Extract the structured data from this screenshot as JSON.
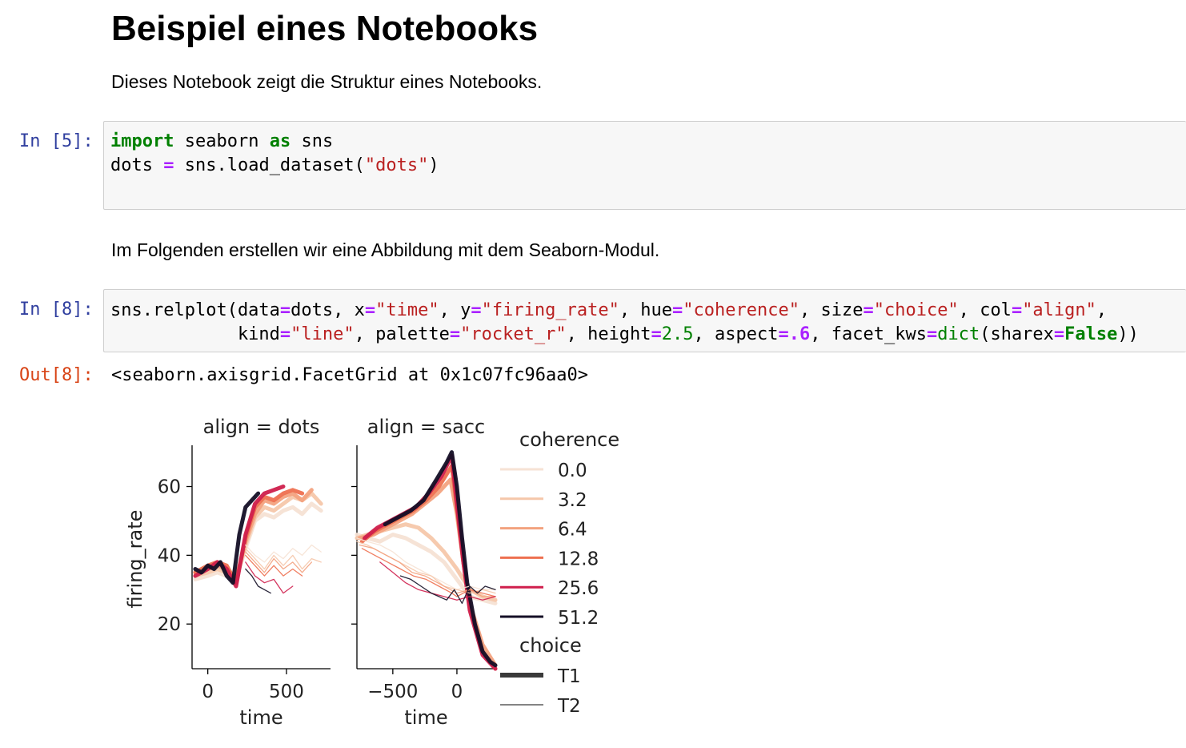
{
  "heading": "Beispiel eines Notebooks",
  "intro": "Dieses Notebook zeigt die Struktur eines Notebooks.",
  "cell1": {
    "prompt": "In [5]:",
    "line1": {
      "kw1": "import",
      "mod": " seaborn ",
      "kw2": "as",
      "alias": " sns"
    },
    "line2": {
      "a": "dots ",
      "op": "=",
      "b": " sns.load_dataset(",
      "s": "\"dots\"",
      "c": ")"
    }
  },
  "para2": "Im Folgenden erstellen wir eine Abbildung mit dem Seaborn-Modul.",
  "cell2": {
    "prompt": "In [8]:",
    "line1": [
      {
        "t": "sns.relplot(data",
        "c": ""
      },
      {
        "t": "=",
        "c": "op"
      },
      {
        "t": "dots, x",
        "c": ""
      },
      {
        "t": "=",
        "c": "op"
      },
      {
        "t": "\"time\"",
        "c": "st"
      },
      {
        "t": ", y",
        "c": ""
      },
      {
        "t": "=",
        "c": "op"
      },
      {
        "t": "\"firing_rate\"",
        "c": "st"
      },
      {
        "t": ", hue",
        "c": ""
      },
      {
        "t": "=",
        "c": "op"
      },
      {
        "t": "\"coherence\"",
        "c": "st"
      },
      {
        "t": ", size",
        "c": ""
      },
      {
        "t": "=",
        "c": "op"
      },
      {
        "t": "\"choice\"",
        "c": "st"
      },
      {
        "t": ", col",
        "c": ""
      },
      {
        "t": "=",
        "c": "op"
      },
      {
        "t": "\"align\"",
        "c": "st"
      },
      {
        "t": ",",
        "c": ""
      }
    ],
    "line2": [
      {
        "t": "            kind",
        "c": ""
      },
      {
        "t": "=",
        "c": "op"
      },
      {
        "t": "\"line\"",
        "c": "st"
      },
      {
        "t": ", palette",
        "c": ""
      },
      {
        "t": "=",
        "c": "op"
      },
      {
        "t": "\"rocket_r\"",
        "c": "st"
      },
      {
        "t": ", height",
        "c": ""
      },
      {
        "t": "=",
        "c": "op"
      },
      {
        "t": "2.5",
        "c": "nm"
      },
      {
        "t": ", aspect",
        "c": ""
      },
      {
        "t": "=.6",
        "c": "op"
      },
      {
        "t": ", facet_kws",
        "c": ""
      },
      {
        "t": "=",
        "c": "op"
      },
      {
        "t": "dict",
        "c": "bi"
      },
      {
        "t": "(sharex",
        "c": ""
      },
      {
        "t": "=",
        "c": "op"
      },
      {
        "t": "False",
        "c": "kw"
      },
      {
        "t": "))",
        "c": ""
      }
    ]
  },
  "output": {
    "prompt": "Out[8]:",
    "text": "<seaborn.axisgrid.FacetGrid at 0x1c07fc96aa0>"
  },
  "chart_data": {
    "type": "line",
    "ylabel": "firing_rate",
    "panels": [
      {
        "title": "align = dots",
        "xlabel": "time",
        "xticks": [
          0,
          500
        ],
        "xlim": [
          -100,
          780
        ],
        "ylim": [
          7,
          72
        ],
        "yticks": [
          20,
          40,
          60
        ]
      },
      {
        "title": "align = sacc",
        "xlabel": "time",
        "xticks": [
          -500,
          0
        ],
        "xticklabels": [
          "−500",
          "0"
        ],
        "xlim": [
          -780,
          300
        ],
        "ylim": [
          7,
          72
        ]
      }
    ],
    "legend": {
      "hue_title": "coherence",
      "hue": [
        {
          "label": "0.0",
          "color": "#f6e2d4"
        },
        {
          "label": "3.2",
          "color": "#f5c7aa"
        },
        {
          "label": "6.4",
          "color": "#f3a27f"
        },
        {
          "label": "12.8",
          "color": "#ee7050"
        },
        {
          "label": "25.6",
          "color": "#cf1f4c"
        },
        {
          "label": "51.2",
          "color": "#140f26"
        }
      ],
      "size_title": "choice",
      "size": [
        {
          "label": "T1",
          "width": 6
        },
        {
          "label": "T2",
          "width": 1.2
        }
      ]
    },
    "series": [
      {
        "panel": 0,
        "coh": 0,
        "choice": "T1",
        "x": [
          -80,
          0,
          60,
          120,
          180,
          240,
          300,
          360,
          420,
          480,
          540,
          600,
          660,
          720
        ],
        "y": [
          33,
          34,
          35,
          34,
          33,
          42,
          50,
          52,
          51,
          53,
          54,
          52,
          55,
          53
        ]
      },
      {
        "panel": 0,
        "coh": 1,
        "choice": "T1",
        "x": [
          -80,
          0,
          60,
          120,
          180,
          240,
          300,
          360,
          420,
          480,
          540,
          600,
          660,
          720
        ],
        "y": [
          34,
          35,
          36,
          35,
          33,
          43,
          51,
          54,
          53,
          55,
          57,
          56,
          58,
          55
        ]
      },
      {
        "panel": 0,
        "coh": 2,
        "choice": "T1",
        "x": [
          -80,
          0,
          60,
          120,
          180,
          240,
          300,
          360,
          420,
          480,
          540,
          600,
          660
        ],
        "y": [
          35,
          36,
          37,
          36,
          33,
          44,
          52,
          56,
          55,
          57,
          58,
          56,
          59
        ]
      },
      {
        "panel": 0,
        "coh": 3,
        "choice": "T1",
        "x": [
          -80,
          0,
          60,
          120,
          180,
          240,
          300,
          360,
          420,
          480,
          540,
          600
        ],
        "y": [
          35,
          37,
          38,
          37,
          32,
          45,
          54,
          57,
          56,
          58,
          59,
          58
        ]
      },
      {
        "panel": 0,
        "coh": 4,
        "choice": "T1",
        "x": [
          -80,
          0,
          60,
          120,
          180,
          240,
          300,
          360,
          420,
          480
        ],
        "y": [
          34,
          36,
          38,
          36,
          31,
          46,
          55,
          58,
          59,
          60
        ]
      },
      {
        "panel": 0,
        "coh": 5,
        "choice": "T1",
        "x": [
          -80,
          -40,
          0,
          40,
          80,
          120,
          160,
          200,
          240,
          280,
          320
        ],
        "y": [
          36,
          35,
          37,
          36,
          38,
          34,
          32,
          46,
          54,
          56,
          58
        ]
      },
      {
        "panel": 0,
        "coh": 0,
        "choice": "T2",
        "x": [
          240,
          300,
          360,
          420,
          480,
          540,
          600,
          660,
          720
        ],
        "y": [
          43,
          40,
          38,
          41,
          39,
          42,
          40,
          43,
          41
        ]
      },
      {
        "panel": 0,
        "coh": 1,
        "choice": "T2",
        "x": [
          240,
          300,
          360,
          420,
          480,
          540,
          600,
          660,
          720
        ],
        "y": [
          42,
          39,
          36,
          40,
          37,
          40,
          36,
          39,
          38
        ]
      },
      {
        "panel": 0,
        "coh": 2,
        "choice": "T2",
        "x": [
          240,
          300,
          360,
          420,
          480,
          540,
          600,
          660
        ],
        "y": [
          41,
          38,
          35,
          39,
          36,
          38,
          35,
          38
        ]
      },
      {
        "panel": 0,
        "coh": 3,
        "choice": "T2",
        "x": [
          240,
          300,
          360,
          420,
          480,
          540,
          600
        ],
        "y": [
          40,
          37,
          34,
          37,
          34,
          36,
          34
        ]
      },
      {
        "panel": 0,
        "coh": 4,
        "choice": "T2",
        "x": [
          240,
          300,
          360,
          420,
          480,
          540
        ],
        "y": [
          38,
          34,
          32,
          33,
          29,
          31
        ]
      },
      {
        "panel": 0,
        "coh": 5,
        "choice": "T2",
        "x": [
          240,
          280,
          320,
          360,
          400
        ],
        "y": [
          36,
          34,
          31,
          30,
          29
        ]
      },
      {
        "panel": 1,
        "coh": 0,
        "choice": "T1",
        "x": [
          -780,
          -700,
          -600,
          -500,
          -400,
          -300,
          -200,
          -100,
          0,
          100,
          200,
          300
        ],
        "y": [
          46,
          45,
          44,
          46,
          45,
          43,
          41,
          38,
          33,
          28,
          27,
          26
        ]
      },
      {
        "panel": 1,
        "coh": 1,
        "choice": "T1",
        "x": [
          -780,
          -700,
          -600,
          -500,
          -400,
          -300,
          -200,
          -100,
          0,
          100,
          200,
          300
        ],
        "y": [
          45,
          46,
          47,
          48,
          49,
          48,
          45,
          41,
          36,
          30,
          28,
          27
        ]
      },
      {
        "panel": 1,
        "coh": 2,
        "choice": "T1",
        "x": [
          -760,
          -650,
          -550,
          -450,
          -350,
          -250,
          -150,
          -50,
          0,
          50,
          100,
          200,
          300
        ],
        "y": [
          45,
          46,
          48,
          50,
          52,
          55,
          58,
          62,
          52,
          38,
          26,
          14,
          8
        ]
      },
      {
        "panel": 1,
        "coh": 3,
        "choice": "T1",
        "x": [
          -740,
          -640,
          -540,
          -440,
          -340,
          -240,
          -140,
          -40,
          0,
          50,
          100,
          200,
          300
        ],
        "y": [
          44,
          47,
          49,
          51,
          53,
          56,
          60,
          66,
          54,
          38,
          25,
          12,
          7
        ]
      },
      {
        "panel": 1,
        "coh": 4,
        "choice": "T1",
        "x": [
          -720,
          -620,
          -520,
          -420,
          -320,
          -220,
          -120,
          -40,
          0,
          50,
          100,
          200,
          300
        ],
        "y": [
          45,
          48,
          50,
          52,
          54,
          58,
          63,
          69,
          55,
          38,
          24,
          11,
          7
        ]
      },
      {
        "panel": 1,
        "coh": 5,
        "choice": "T1",
        "x": [
          -560,
          -460,
          -360,
          -260,
          -160,
          -80,
          -40,
          0,
          40,
          80,
          140,
          200,
          260,
          300
        ],
        "y": [
          49,
          51,
          53,
          56,
          62,
          67,
          70,
          60,
          45,
          32,
          20,
          12,
          9,
          8
        ]
      },
      {
        "panel": 1,
        "coh": 0,
        "choice": "T2",
        "x": [
          -780,
          -700,
          -600,
          -500,
          -400,
          -300,
          -200,
          -100,
          0,
          100,
          200,
          300
        ],
        "y": [
          45,
          44,
          43,
          41,
          38,
          36,
          34,
          32,
          30,
          31,
          30,
          30
        ]
      },
      {
        "panel": 1,
        "coh": 1,
        "choice": "T2",
        "x": [
          -780,
          -700,
          -600,
          -500,
          -400,
          -300,
          -200,
          -100,
          0,
          100,
          200,
          300
        ],
        "y": [
          44,
          43,
          41,
          39,
          37,
          35,
          34,
          31,
          30,
          29,
          30,
          29
        ]
      },
      {
        "panel": 1,
        "coh": 2,
        "choice": "T2",
        "x": [
          -760,
          -650,
          -550,
          -450,
          -350,
          -250,
          -150,
          -50,
          0,
          100,
          200,
          300
        ],
        "y": [
          43,
          42,
          40,
          38,
          35,
          34,
          32,
          30,
          29,
          30,
          28,
          28
        ]
      },
      {
        "panel": 1,
        "coh": 3,
        "choice": "T2",
        "x": [
          -740,
          -640,
          -540,
          -440,
          -340,
          -240,
          -140,
          -40,
          0,
          100,
          200,
          300
        ],
        "y": [
          42,
          40,
          38,
          36,
          34,
          33,
          31,
          29,
          28,
          30,
          29,
          28
        ]
      },
      {
        "panel": 1,
        "coh": 4,
        "choice": "T2",
        "x": [
          -600,
          -500,
          -400,
          -300,
          -200,
          -100,
          0,
          100,
          200,
          300
        ],
        "y": [
          38,
          35,
          32,
          30,
          29,
          28,
          27,
          28,
          27,
          28
        ]
      },
      {
        "panel": 1,
        "coh": 5,
        "choice": "T2",
        "x": [
          -440,
          -360,
          -280,
          -200,
          -140,
          -80,
          -20,
          40,
          100,
          160,
          220,
          300
        ],
        "y": [
          34,
          33,
          31,
          29,
          28,
          27,
          30,
          26,
          31,
          29,
          31,
          30
        ]
      }
    ]
  }
}
